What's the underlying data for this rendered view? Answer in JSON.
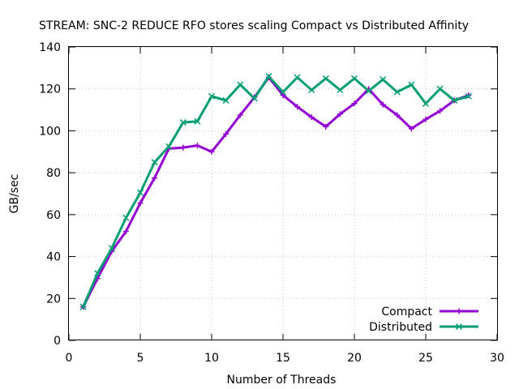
{
  "chart_data": {
    "type": "line",
    "title": "STREAM: SNC-2 REDUCE RFO stores scaling Compact vs Distributed Affinity",
    "xlabel": "Number of Threads",
    "ylabel": "GB/sec",
    "xlim": [
      0,
      30
    ],
    "ylim": [
      0,
      140
    ],
    "xticks": [
      0,
      5,
      10,
      15,
      20,
      25,
      30
    ],
    "yticks": [
      0,
      20,
      40,
      60,
      80,
      100,
      120,
      140
    ],
    "grid": true,
    "legend_position": "bottom-right",
    "x": [
      1,
      2,
      3,
      4,
      5,
      6,
      7,
      8,
      9,
      10,
      11,
      12,
      13,
      14,
      15,
      16,
      17,
      18,
      19,
      20,
      21,
      22,
      23,
      24,
      25,
      26,
      27,
      28
    ],
    "series": [
      {
        "name": "Compact",
        "color": "#9400d3",
        "marker": "plus",
        "values": [
          16,
          29.5,
          42.5,
          52,
          65.5,
          77.5,
          91.5,
          92,
          93,
          90,
          98.5,
          107.5,
          116,
          125.5,
          117,
          111.5,
          106.5,
          102,
          108,
          113,
          120,
          112.5,
          107.5,
          101,
          105.5,
          109.5,
          114.5,
          117
        ]
      },
      {
        "name": "Distributed",
        "color": "#009e73",
        "marker": "x",
        "values": [
          16,
          32,
          44,
          58.5,
          70.5,
          85,
          92.5,
          104,
          104.5,
          116.5,
          114.5,
          122,
          115.5,
          126,
          118.5,
          125.5,
          119.5,
          125,
          119.5,
          125,
          119,
          124.5,
          118.5,
          122,
          113,
          120,
          114.5,
          116.5
        ]
      }
    ]
  }
}
